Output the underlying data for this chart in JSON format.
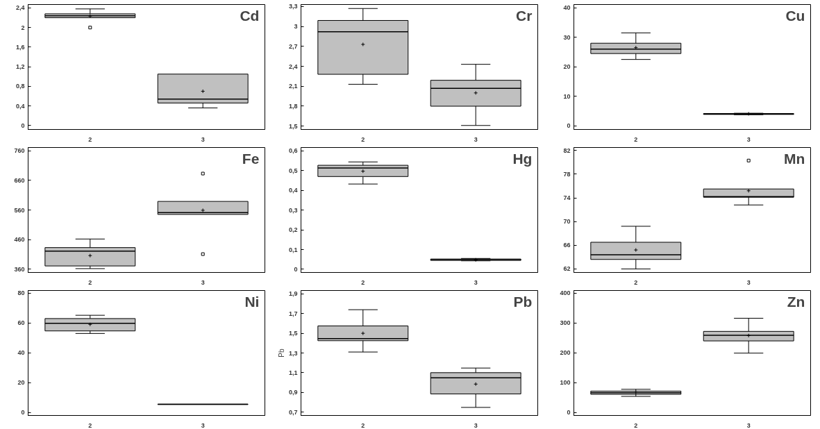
{
  "chart_data": [
    {
      "type": "box",
      "title": "Cd",
      "categories": [
        "2",
        "3"
      ],
      "ylim": [
        -0.08,
        2.47
      ],
      "yticks": [
        0,
        {
          "value": 0.4,
          "label": "0,4"
        },
        {
          "value": 0.8,
          "label": "0,8"
        },
        {
          "value": 1.2,
          "label": "1,2"
        },
        {
          "value": 1.6,
          "label": "1,6"
        },
        2,
        {
          "value": 2.4,
          "label": "2,4"
        }
      ],
      "boxes": [
        {
          "low": 2.2,
          "q1": 2.2,
          "median": 2.24,
          "q3": 2.28,
          "high": 2.38,
          "mean": 2.23,
          "outliers": [
            2.0
          ]
        },
        {
          "low": 0.36,
          "q1": 0.46,
          "median": 0.54,
          "q3": 1.05,
          "high": 1.05,
          "mean": 0.7
        }
      ]
    },
    {
      "type": "box",
      "title": "Cr",
      "categories": [
        "2",
        "3"
      ],
      "ylim": [
        1.45,
        3.33
      ],
      "yticks": [
        {
          "value": 1.5,
          "label": "1,5"
        },
        {
          "value": 1.8,
          "label": "1,8"
        },
        {
          "value": 2.1,
          "label": "2,1"
        },
        {
          "value": 2.4,
          "label": "2,4"
        },
        {
          "value": 2.7,
          "label": "2,7"
        },
        3,
        {
          "value": 3.3,
          "label": "3,3"
        }
      ],
      "boxes": [
        {
          "low": 2.13,
          "q1": 2.28,
          "median": 2.92,
          "q3": 3.09,
          "high": 3.27,
          "mean": 2.73
        },
        {
          "low": 1.51,
          "q1": 1.8,
          "median": 2.07,
          "q3": 2.19,
          "high": 2.43,
          "mean": 2.0
        }
      ]
    },
    {
      "type": "box",
      "title": "Cu",
      "categories": [
        "2",
        "3"
      ],
      "ylim": [
        -1.2,
        41.1
      ],
      "yticks": [
        0,
        10,
        20,
        30,
        40
      ],
      "boxes": [
        {
          "low": 22.5,
          "q1": 24.5,
          "median": 26,
          "q3": 28,
          "high": 31.5,
          "mean": 26.5
        },
        {
          "low": 3.8,
          "q1": 3.9,
          "median": 4,
          "q3": 4.2,
          "high": 4.3,
          "mean": 4.1
        }
      ]
    },
    {
      "type": "box",
      "title": "Fe",
      "categories": [
        "2",
        "3"
      ],
      "ylim": [
        349,
        771
      ],
      "yticks": [
        360,
        460,
        560,
        660,
        760
      ],
      "boxes": [
        {
          "low": 362,
          "q1": 371,
          "median": 421,
          "q3": 433,
          "high": 462,
          "mean": 406
        },
        {
          "low": 545,
          "q1": 545,
          "median": 551,
          "q3": 589,
          "high": 589,
          "mean": 559,
          "outliers": [
            683,
            411
          ]
        }
      ]
    },
    {
      "type": "box",
      "title": "Hg",
      "categories": [
        "2",
        "3"
      ],
      "ylim": [
        -0.016,
        0.617
      ],
      "yticks": [
        0,
        {
          "value": 0.1,
          "label": "0,1"
        },
        {
          "value": 0.2,
          "label": "0,2"
        },
        {
          "value": 0.3,
          "label": "0,3"
        },
        {
          "value": 0.4,
          "label": "0,4"
        },
        {
          "value": 0.5,
          "label": "0,5"
        },
        {
          "value": 0.6,
          "label": "0,6"
        }
      ],
      "boxes": [
        {
          "low": 0.432,
          "q1": 0.47,
          "median": 0.513,
          "q3": 0.527,
          "high": 0.544,
          "mean": 0.497
        },
        {
          "low": 0.043,
          "q1": 0.045,
          "median": 0.05,
          "q3": 0.052,
          "high": 0.055,
          "mean": 0.048
        }
      ]
    },
    {
      "type": "box",
      "title": "Mn",
      "categories": [
        "2",
        "3"
      ],
      "ylim": [
        61.4,
        82.5
      ],
      "yticks": [
        62,
        66,
        70,
        74,
        78,
        82
      ],
      "boxes": [
        {
          "low": 62.0,
          "q1": 63.6,
          "median": 64.4,
          "q3": 66.5,
          "high": 69.2,
          "mean": 65.2
        },
        {
          "low": 72.8,
          "q1": 74.1,
          "median": 74.2,
          "q3": 75.5,
          "high": 75.5,
          "mean": 75.2,
          "outliers": [
            80.3
          ]
        }
      ]
    },
    {
      "type": "box",
      "title": "Ni",
      "categories": [
        "2",
        "3"
      ],
      "ylim": [
        -2,
        81.8
      ],
      "yticks": [
        0,
        20,
        40,
        60,
        80
      ],
      "boxes": [
        {
          "low": 53,
          "q1": 54.7,
          "median": 59.8,
          "q3": 63,
          "high": 65.2,
          "mean": 59.1
        },
        {
          "low": 5.4,
          "q1": 5.4,
          "median": 5.5,
          "q3": 5.6,
          "high": 5.6
        }
      ]
    },
    {
      "type": "box",
      "title": "Pb",
      "ylabel": "Pb",
      "categories": [
        "2",
        "3"
      ],
      "ylim": [
        0.665,
        1.935
      ],
      "yticks": [
        {
          "value": 0.7,
          "label": "0,7"
        },
        {
          "value": 0.9,
          "label": "0,9"
        },
        {
          "value": 1.1,
          "label": "1,1"
        },
        {
          "value": 1.3,
          "label": "1,3"
        },
        {
          "value": 1.5,
          "label": "1,5"
        },
        {
          "value": 1.7,
          "label": "1,7"
        },
        {
          "value": 1.9,
          "label": "1,9"
        }
      ],
      "boxes": [
        {
          "low": 1.31,
          "q1": 1.425,
          "median": 1.446,
          "q3": 1.575,
          "high": 1.74,
          "mean": 1.5
        },
        {
          "low": 0.747,
          "q1": 0.884,
          "median": 1.047,
          "q3": 1.1,
          "high": 1.147,
          "mean": 0.984
        }
      ]
    },
    {
      "type": "box",
      "title": "Zn",
      "categories": [
        "2",
        "3"
      ],
      "ylim": [
        -10,
        409
      ],
      "yticks": [
        0,
        100,
        200,
        300,
        400
      ],
      "boxes": [
        {
          "low": 54,
          "q1": 61,
          "median": 66,
          "q3": 71.7,
          "high": 77.7,
          "mean": 67
        },
        {
          "low": 199,
          "q1": 240,
          "median": 259,
          "q3": 272,
          "high": 316,
          "mean": 258
        }
      ]
    }
  ]
}
